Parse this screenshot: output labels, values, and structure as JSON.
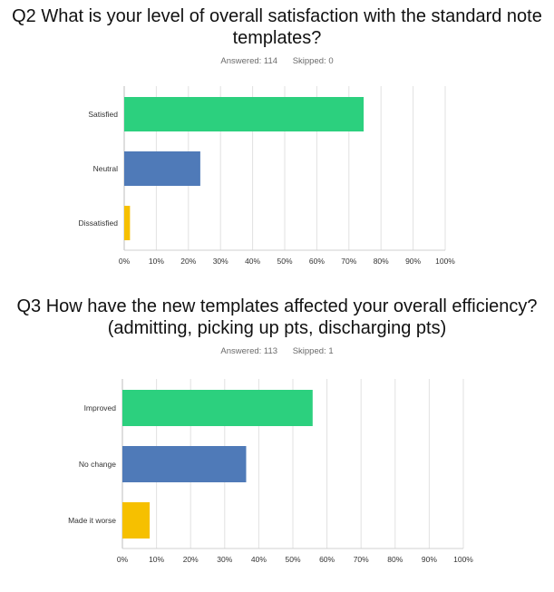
{
  "chart_data": [
    {
      "type": "bar",
      "orientation": "horizontal",
      "title": "Q2 What is your level of overall satisfaction with the standard note templates?",
      "title_line1": "Q2 What is your level of overall satisfaction with the standard note",
      "title_line2": "templates?",
      "answered": "Answered: 114",
      "skipped": "Skipped: 0",
      "categories": [
        "Satisfied",
        "Neutral",
        "Dissatisfied"
      ],
      "values": [
        74.6,
        23.7,
        1.8
      ],
      "colors": [
        "#2cd07e",
        "#4f7ab8",
        "#f6c000"
      ],
      "xlim": [
        0,
        100
      ],
      "xticks": [
        "0%",
        "10%",
        "20%",
        "30%",
        "40%",
        "50%",
        "60%",
        "70%",
        "80%",
        "90%",
        "100%"
      ],
      "grid": true
    },
    {
      "type": "bar",
      "orientation": "horizontal",
      "title": "Q3 How have the new templates affected your overall efficiency? (admitting, picking up pts, discharging pts)",
      "title_line1": "Q3 How have the new templates affected your overall efficiency?",
      "title_line2": "(admitting, picking up pts, discharging pts)",
      "answered": "Answered: 113",
      "skipped": "Skipped: 1",
      "categories": [
        "Improved",
        "No change",
        "Made it worse"
      ],
      "values": [
        55.8,
        36.3,
        8.0
      ],
      "colors": [
        "#2cd07e",
        "#4f7ab8",
        "#f6c000"
      ],
      "xlim": [
        0,
        100
      ],
      "xticks": [
        "0%",
        "10%",
        "20%",
        "30%",
        "40%",
        "50%",
        "60%",
        "70%",
        "80%",
        "90%",
        "100%"
      ],
      "grid": true
    }
  ]
}
